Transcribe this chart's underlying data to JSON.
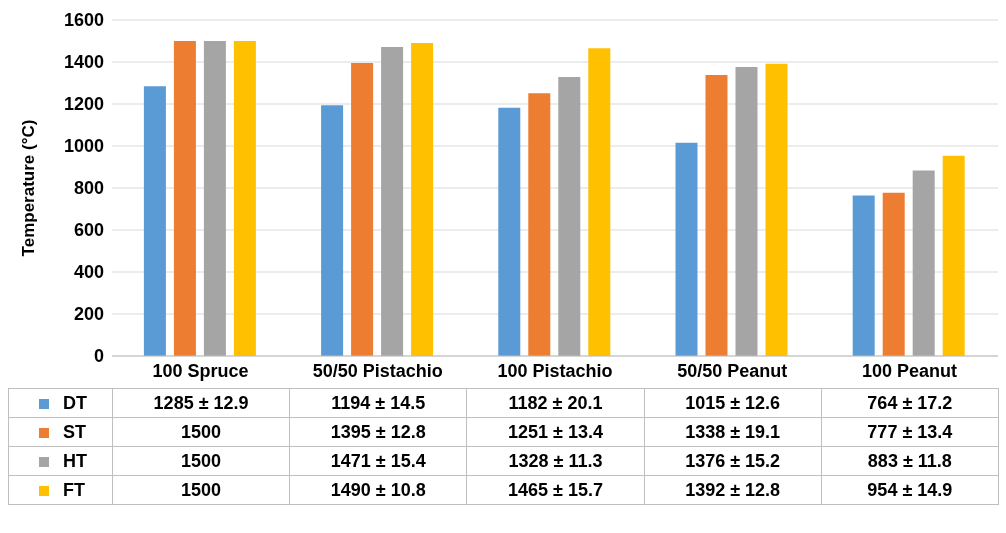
{
  "chart_data": {
    "type": "bar",
    "ylabel": "Temperature (°C)",
    "categories": [
      "100 Spruce",
      "50/50 Pistachio",
      "100 Pistachio",
      "50/50 Peanut",
      "100 Peanut"
    ],
    "series": [
      {
        "name": "DT",
        "color": "#5b9bd5",
        "values": [
          1285,
          1194,
          1182,
          1015,
          764
        ],
        "value_labels": [
          "1285 ± 12.9",
          "1194 ± 14.5",
          "1182 ± 20.1",
          "1015 ± 12.6",
          "764 ± 17.2"
        ]
      },
      {
        "name": "ST",
        "color": "#ed7d31",
        "values": [
          1500,
          1395,
          1251,
          1338,
          777
        ],
        "value_labels": [
          "1500",
          "1395 ± 12.8",
          "1251 ± 13.4",
          "1338 ± 19.1",
          "777 ± 13.4"
        ]
      },
      {
        "name": "HT",
        "color": "#a5a5a5",
        "values": [
          1500,
          1471,
          1328,
          1376,
          883
        ],
        "value_labels": [
          "1500",
          "1471 ± 15.4",
          "1328 ± 11.3",
          "1376 ± 15.2",
          "883 ± 11.8"
        ]
      },
      {
        "name": "FT",
        "color": "#ffc000",
        "values": [
          1500,
          1490,
          1465,
          1392,
          954
        ],
        "value_labels": [
          "1500",
          "1490 ± 10.8",
          "1465 ± 15.7",
          "1392 ± 12.8",
          "954 ± 14.9"
        ]
      }
    ],
    "ylim": [
      0,
      1600
    ],
    "yticks": [
      0,
      200,
      400,
      600,
      800,
      1000,
      1200,
      1400,
      1600
    ],
    "grid": "y",
    "legend": "bottom"
  }
}
